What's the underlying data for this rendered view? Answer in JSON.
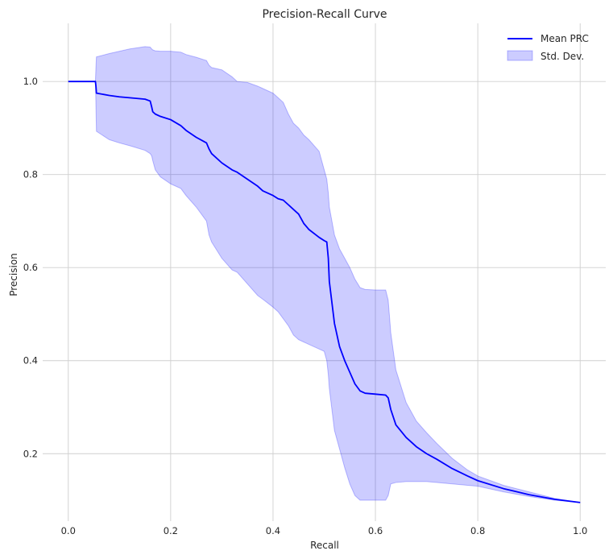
{
  "chart_data": {
    "type": "line",
    "title": "Precision-Recall Curve",
    "xlabel": "Recall",
    "ylabel": "Precision",
    "xlim": [
      -0.05,
      1.05
    ],
    "ylim": [
      0.055,
      1.125
    ],
    "grid": true,
    "legend_position": "top-right",
    "x_ticks": [
      0.0,
      0.2,
      0.4,
      0.6,
      0.8,
      1.0
    ],
    "x_tick_labels": [
      "0.0",
      "0.2",
      "0.4",
      "0.6",
      "0.8",
      "1.0"
    ],
    "y_ticks": [
      0.2,
      0.4,
      0.6,
      0.8,
      1.0
    ],
    "y_tick_labels": [
      "0.2",
      "0.4",
      "0.6",
      "0.8",
      "1.0"
    ],
    "series": [
      {
        "name": "Mean PRC",
        "kind": "line",
        "color": "#0000ff",
        "x": [
          0.0,
          0.053,
          0.054,
          0.055,
          0.08,
          0.1,
          0.12,
          0.15,
          0.16,
          0.163,
          0.165,
          0.17,
          0.18,
          0.2,
          0.22,
          0.23,
          0.25,
          0.27,
          0.275,
          0.28,
          0.3,
          0.32,
          0.33,
          0.35,
          0.37,
          0.38,
          0.4,
          0.41,
          0.42,
          0.43,
          0.44,
          0.45,
          0.46,
          0.47,
          0.49,
          0.5,
          0.505,
          0.508,
          0.51,
          0.52,
          0.53,
          0.54,
          0.55,
          0.56,
          0.57,
          0.58,
          0.6,
          0.62,
          0.625,
          0.63,
          0.64,
          0.66,
          0.68,
          0.7,
          0.72,
          0.75,
          0.78,
          0.8,
          0.85,
          0.9,
          0.95,
          1.0
        ],
        "y": [
          1.0,
          1.0,
          0.99,
          0.975,
          0.97,
          0.967,
          0.965,
          0.962,
          0.958,
          0.945,
          0.935,
          0.93,
          0.925,
          0.918,
          0.905,
          0.895,
          0.88,
          0.868,
          0.855,
          0.845,
          0.825,
          0.81,
          0.805,
          0.79,
          0.775,
          0.765,
          0.755,
          0.748,
          0.745,
          0.735,
          0.725,
          0.715,
          0.695,
          0.682,
          0.665,
          0.658,
          0.655,
          0.62,
          0.57,
          0.48,
          0.43,
          0.4,
          0.375,
          0.35,
          0.335,
          0.33,
          0.328,
          0.326,
          0.32,
          0.295,
          0.262,
          0.235,
          0.215,
          0.2,
          0.188,
          0.168,
          0.152,
          0.142,
          0.125,
          0.112,
          0.102,
          0.095
        ]
      },
      {
        "name": "Std. Dev.",
        "kind": "band",
        "color": "#0000ff",
        "x": [
          0.0,
          0.053,
          0.054,
          0.055,
          0.08,
          0.1,
          0.12,
          0.15,
          0.16,
          0.163,
          0.165,
          0.17,
          0.18,
          0.2,
          0.22,
          0.23,
          0.25,
          0.27,
          0.275,
          0.28,
          0.3,
          0.32,
          0.33,
          0.35,
          0.37,
          0.38,
          0.4,
          0.41,
          0.42,
          0.43,
          0.44,
          0.45,
          0.46,
          0.47,
          0.49,
          0.5,
          0.505,
          0.508,
          0.51,
          0.52,
          0.53,
          0.54,
          0.55,
          0.56,
          0.57,
          0.58,
          0.6,
          0.62,
          0.625,
          0.63,
          0.64,
          0.66,
          0.68,
          0.7,
          0.72,
          0.75,
          0.78,
          0.8,
          0.85,
          0.9,
          0.95,
          1.0
        ],
        "upper": [
          1.0,
          1.0,
          1.03,
          1.053,
          1.06,
          1.065,
          1.07,
          1.075,
          1.074,
          1.07,
          1.068,
          1.066,
          1.065,
          1.065,
          1.063,
          1.058,
          1.052,
          1.045,
          1.035,
          1.03,
          1.025,
          1.01,
          1.0,
          0.998,
          0.99,
          0.985,
          0.975,
          0.965,
          0.955,
          0.93,
          0.91,
          0.9,
          0.885,
          0.875,
          0.85,
          0.81,
          0.79,
          0.76,
          0.73,
          0.67,
          0.64,
          0.62,
          0.6,
          0.575,
          0.557,
          0.553,
          0.552,
          0.552,
          0.53,
          0.46,
          0.38,
          0.31,
          0.27,
          0.245,
          0.222,
          0.19,
          0.165,
          0.152,
          0.132,
          0.118,
          0.104,
          0.095
        ],
        "lower": [
          1.0,
          1.0,
          0.95,
          0.893,
          0.875,
          0.868,
          0.862,
          0.852,
          0.845,
          0.84,
          0.83,
          0.81,
          0.795,
          0.78,
          0.77,
          0.755,
          0.73,
          0.7,
          0.67,
          0.655,
          0.62,
          0.595,
          0.59,
          0.565,
          0.54,
          0.532,
          0.515,
          0.505,
          0.49,
          0.475,
          0.455,
          0.445,
          0.44,
          0.435,
          0.425,
          0.42,
          0.4,
          0.37,
          0.34,
          0.25,
          0.21,
          0.17,
          0.135,
          0.11,
          0.1,
          0.1,
          0.1,
          0.1,
          0.11,
          0.135,
          0.138,
          0.14,
          0.14,
          0.14,
          0.138,
          0.135,
          0.132,
          0.13,
          0.118,
          0.108,
          0.1,
          0.095
        ]
      }
    ]
  }
}
